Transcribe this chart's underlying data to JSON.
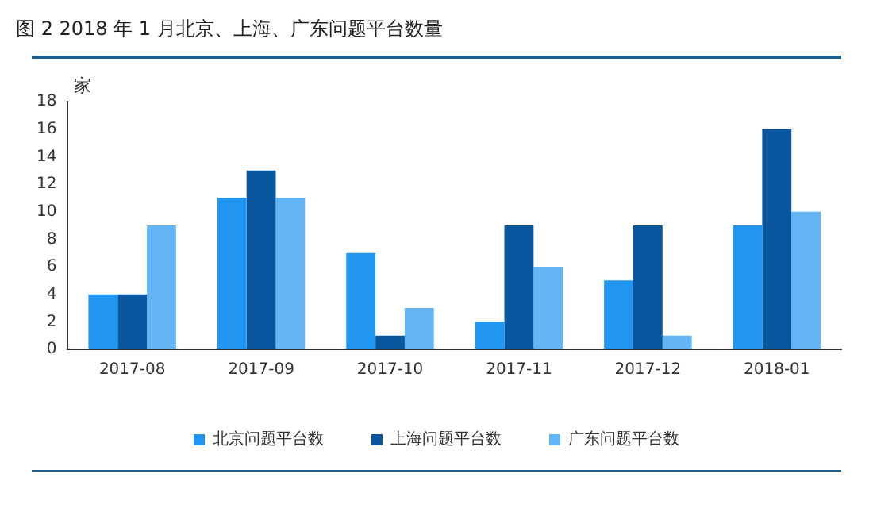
{
  "chart_data": {
    "type": "bar",
    "title": "图 2 2018 年 1 月北京、上海、广东问题平台数量",
    "ylabel": "家",
    "categories": [
      "2017-08",
      "2017-09",
      "2017-10",
      "2017-11",
      "2017-12",
      "2018-01"
    ],
    "series": [
      {
        "name": "北京问题平台数",
        "color": "#2196f0",
        "values": [
          4,
          11,
          7,
          2,
          5,
          9
        ]
      },
      {
        "name": "上海问题平台数",
        "color": "#0a569e",
        "values": [
          4,
          13,
          1,
          9,
          9,
          16
        ]
      },
      {
        "name": "广东问题平台数",
        "color": "#64b5f6",
        "values": [
          9,
          11,
          3,
          6,
          1,
          10
        ]
      }
    ],
    "ylim": [
      0,
      18
    ],
    "yticks": [
      0,
      2,
      4,
      6,
      8,
      10,
      12,
      14,
      16,
      18
    ],
    "grid": false,
    "legend": "bottom"
  }
}
